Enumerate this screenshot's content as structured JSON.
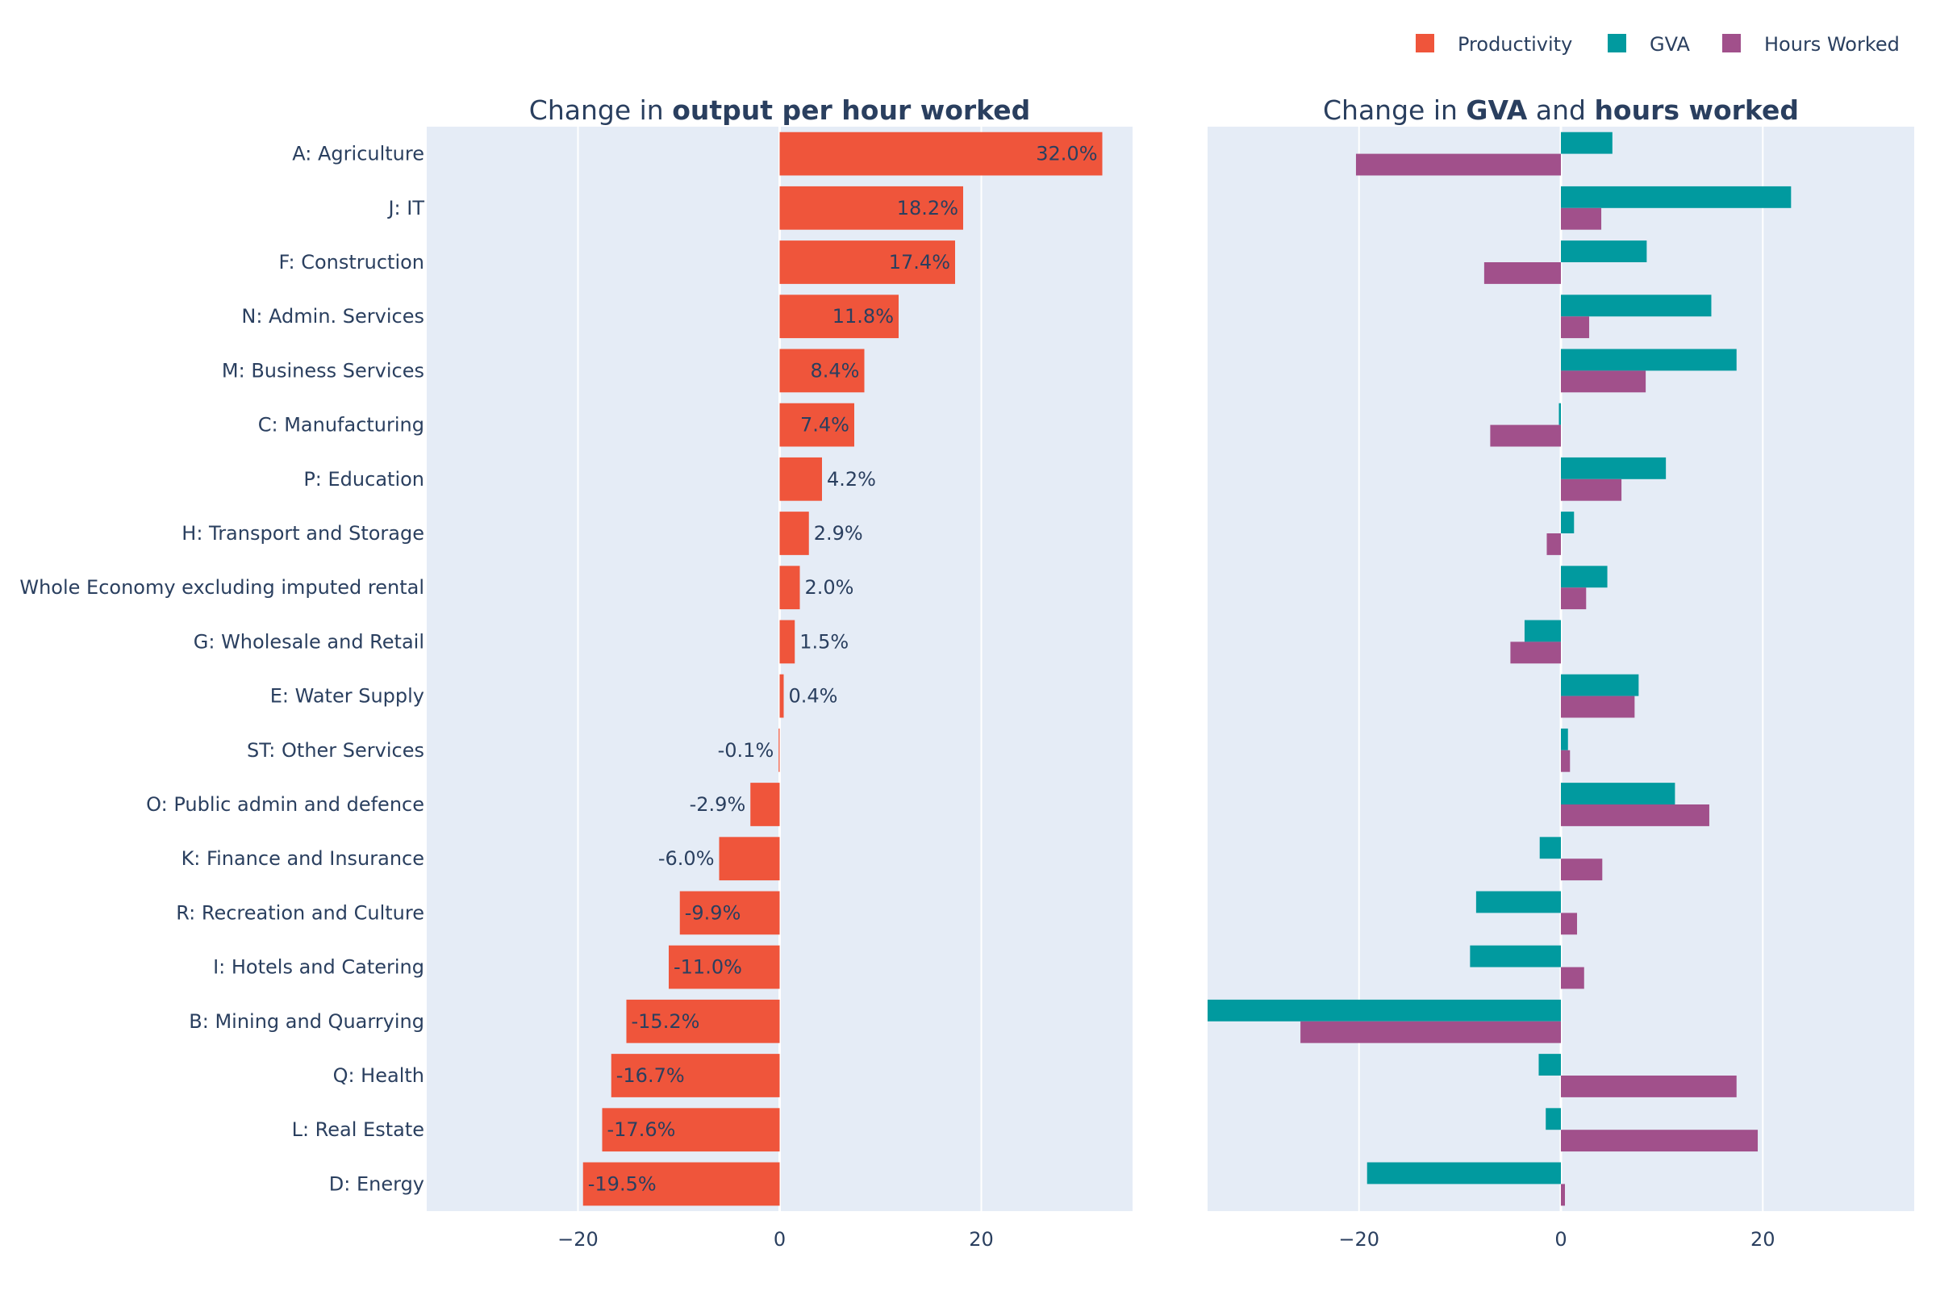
{
  "chart_data": [
    {
      "type": "bar",
      "orientation": "horizontal",
      "title_parts": [
        {
          "text": "Change in ",
          "bold": false
        },
        {
          "text": "output per hour worked",
          "bold": true
        }
      ],
      "categories": [
        "A: Agriculture",
        "J: IT",
        "F: Construction",
        "N: Admin. Services",
        "M: Business Services",
        "C: Manufacturing",
        "P: Education",
        "H: Transport and Storage",
        "Whole Economy excluding imputed rental",
        "G: Wholesale and Retail",
        "E: Water Supply",
        "ST: Other Services",
        "O: Public admin and defence",
        "K: Finance and Insurance",
        "R: Recreation and Culture",
        "I: Hotels and Catering",
        "B: Mining and Quarrying",
        "Q: Health",
        "L: Real Estate",
        "D: Energy"
      ],
      "series": [
        {
          "name": "Productivity",
          "color": "#EF553B",
          "values": [
            32.0,
            18.2,
            17.4,
            11.8,
            8.4,
            7.4,
            4.2,
            2.9,
            2.0,
            1.5,
            0.4,
            -0.1,
            -2.9,
            -6.0,
            -9.9,
            -11.0,
            -15.2,
            -16.7,
            -17.6,
            -19.5
          ],
          "labels": [
            "32.0%",
            "18.2%",
            "17.4%",
            "11.8%",
            "8.4%",
            "7.4%",
            "4.2%",
            "2.9%",
            "2.0%",
            "1.5%",
            "0.4%",
            "-0.1%",
            "-2.9%",
            "-6.0%",
            "-9.9%",
            "-11.0%",
            "-15.2%",
            "-16.7%",
            "-17.6%",
            "-19.5%"
          ]
        }
      ],
      "xlim": [
        -35,
        35
      ],
      "xticks": [
        -20,
        0,
        20
      ],
      "xtick_labels": [
        "−20",
        "0",
        "20"
      ],
      "grid": true
    },
    {
      "type": "bar",
      "orientation": "horizontal",
      "title_parts": [
        {
          "text": "Change in ",
          "bold": false
        },
        {
          "text": "GVA",
          "bold": true
        },
        {
          "text": " and ",
          "bold": false
        },
        {
          "text": "hours worked",
          "bold": true
        }
      ],
      "categories": [
        "A: Agriculture",
        "J: IT",
        "F: Construction",
        "N: Admin. Services",
        "M: Business Services",
        "C: Manufacturing",
        "P: Education",
        "H: Transport and Storage",
        "Whole Economy excluding imputed rental",
        "G: Wholesale and Retail",
        "E: Water Supply",
        "ST: Other Services",
        "O: Public admin and defence",
        "K: Finance and Insurance",
        "R: Recreation and Culture",
        "I: Hotels and Catering",
        "B: Mining and Quarrying",
        "Q: Health",
        "L: Real Estate",
        "D: Energy"
      ],
      "series": [
        {
          "name": "GVA",
          "color": "#019a9f",
          "values": [
            5.1,
            22.8,
            8.5,
            14.9,
            17.4,
            -0.2,
            10.4,
            1.3,
            4.6,
            -3.6,
            7.7,
            0.7,
            11.3,
            -2.1,
            -8.4,
            -9.0,
            -35.0,
            -2.2,
            -1.5,
            -19.2
          ]
        },
        {
          "name": "Hours Worked",
          "color": "#a1508b",
          "values": [
            -20.3,
            4.0,
            -7.6,
            2.8,
            8.4,
            -7.0,
            6.0,
            -1.4,
            2.5,
            -5.0,
            7.3,
            0.9,
            14.7,
            4.1,
            1.6,
            2.3,
            -25.8,
            17.4,
            19.5,
            0.4
          ]
        }
      ],
      "xlim": [
        -35,
        35
      ],
      "xticks": [
        -20,
        0,
        20
      ],
      "xtick_labels": [
        "−20",
        "0",
        "20"
      ],
      "grid": true
    }
  ],
  "legend": {
    "position": "top-right",
    "items": [
      {
        "name": "Productivity",
        "color": "#EF553B"
      },
      {
        "name": "GVA",
        "color": "#019a9f"
      },
      {
        "name": "Hours Worked",
        "color": "#a1508b"
      }
    ]
  }
}
